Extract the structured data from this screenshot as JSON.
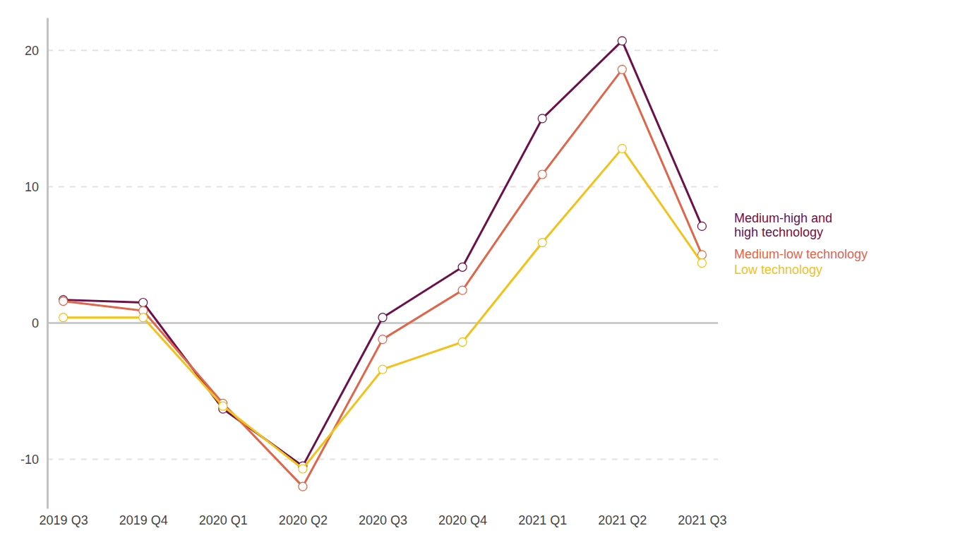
{
  "chart_data": {
    "type": "line",
    "categories": [
      "2019 Q3",
      "2019 Q4",
      "2020 Q1",
      "2020 Q2",
      "2020 Q3",
      "2020 Q4",
      "2021 Q1",
      "2021 Q2",
      "2021 Q3"
    ],
    "series": [
      {
        "name": "Medium-high and\nhigh technology",
        "color": "#6b1048",
        "marker": "circle",
        "values": [
          1.7,
          1.5,
          -6.3,
          -10.5,
          0.4,
          4.1,
          15.0,
          20.7,
          7.1
        ]
      },
      {
        "name": "Medium-low technology",
        "color": "#e0654a",
        "marker": "circle",
        "values": [
          1.6,
          0.9,
          -5.9,
          -12.0,
          -1.2,
          2.4,
          10.9,
          18.6,
          5.0
        ]
      },
      {
        "name": "Low technology",
        "color": "#f2c21b",
        "marker": "circle",
        "values": [
          0.4,
          0.4,
          -6.1,
          -10.7,
          -3.4,
          -1.4,
          5.9,
          12.8,
          4.4
        ]
      }
    ],
    "ylim": [
      -13.6,
      22.4
    ],
    "yticks": [
      -10,
      0,
      10,
      20
    ],
    "grid": true,
    "legend": "right"
  }
}
